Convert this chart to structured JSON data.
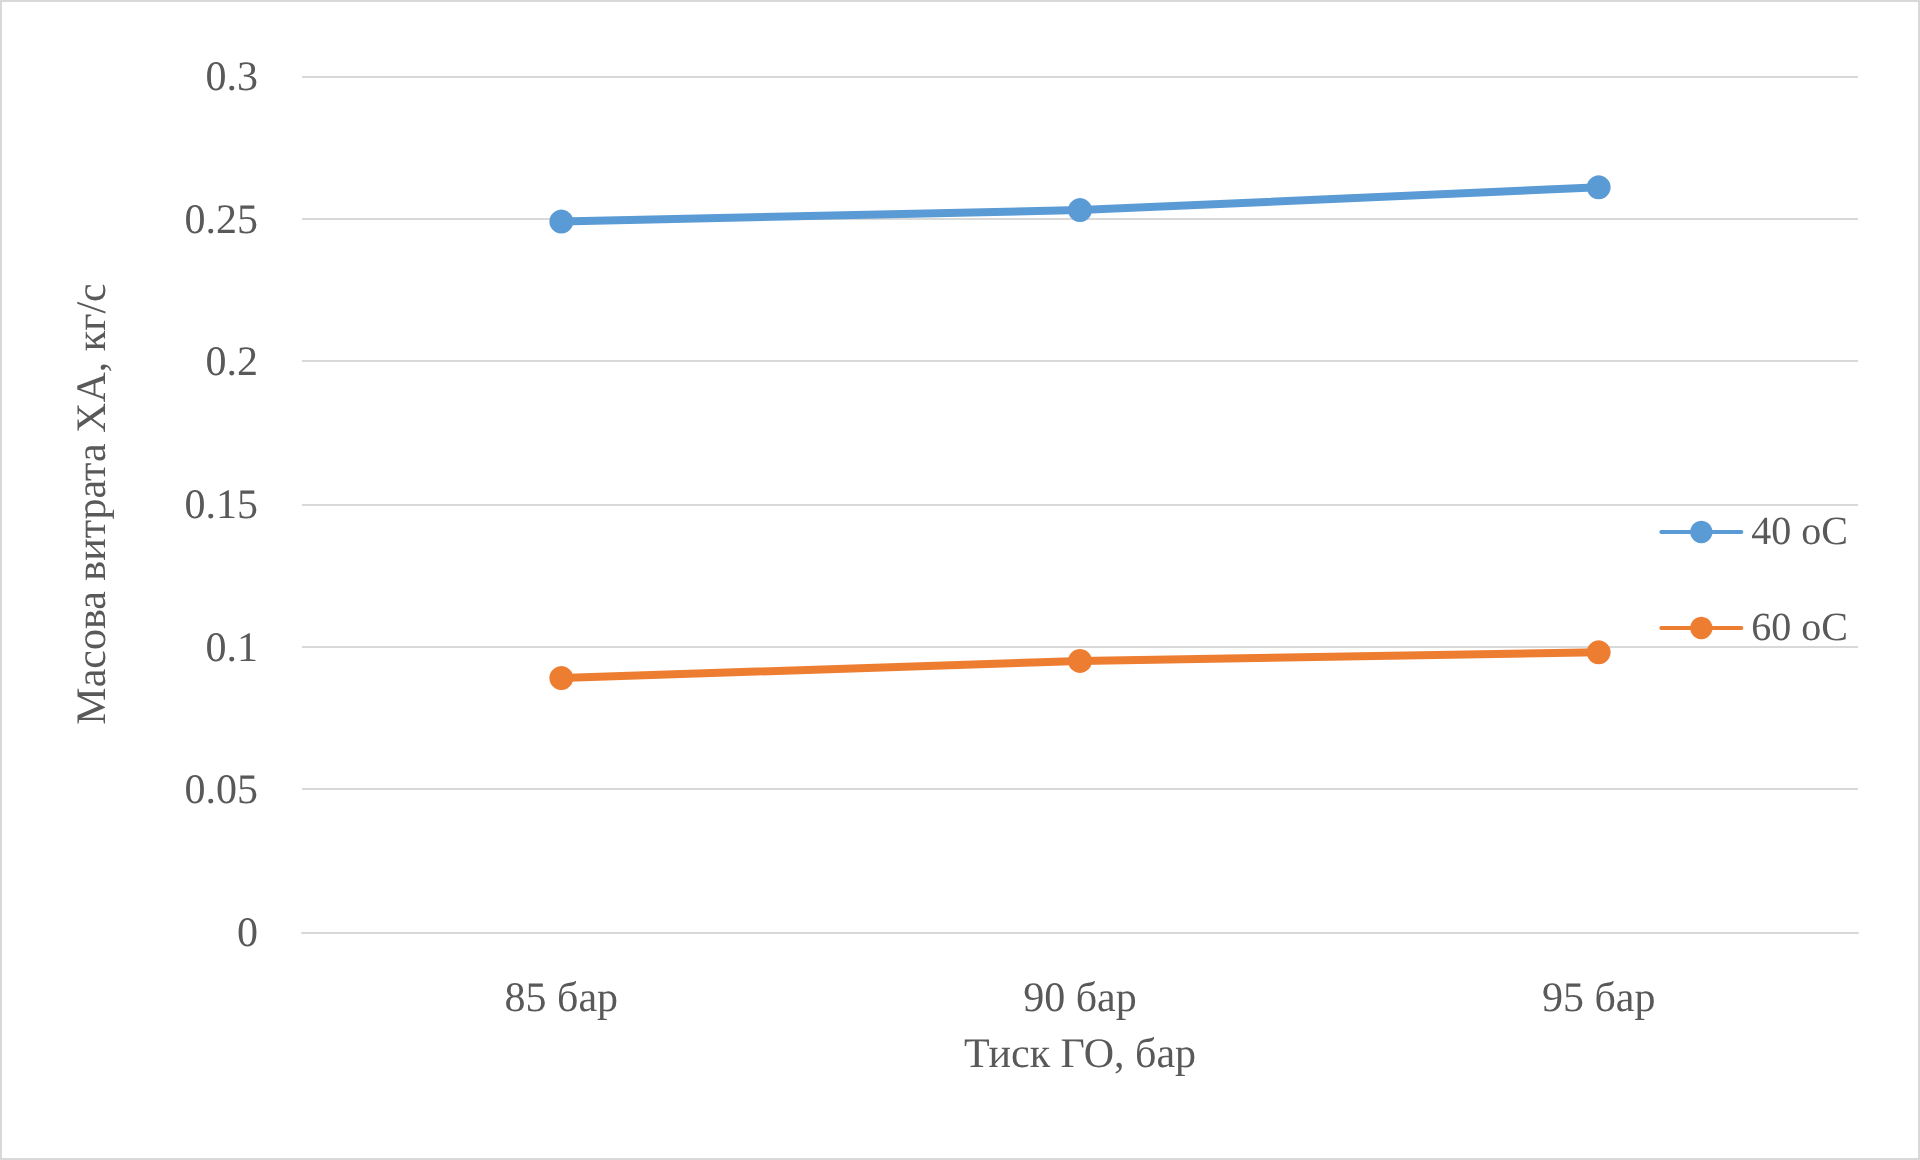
{
  "chart_data": {
    "type": "line",
    "xlabel": "Тиск ГО, бар",
    "ylabel": "Масова витрата ХА, кг/с",
    "categories": [
      "85 бар",
      "90 бар",
      "95 бар"
    ],
    "series": [
      {
        "name": "40 оС",
        "color": "#5b9bd5",
        "values": [
          0.249,
          0.253,
          0.261
        ]
      },
      {
        "name": "60 оС",
        "color": "#ed7d31",
        "values": [
          0.089,
          0.095,
          0.098
        ]
      }
    ],
    "ylim": [
      0,
      0.3
    ],
    "yticks": [
      0,
      0.05,
      0.1,
      0.15,
      0.2,
      0.25,
      0.3
    ],
    "grid": "y",
    "legend": "right",
    "marker": "circle",
    "line_style": "solid"
  }
}
